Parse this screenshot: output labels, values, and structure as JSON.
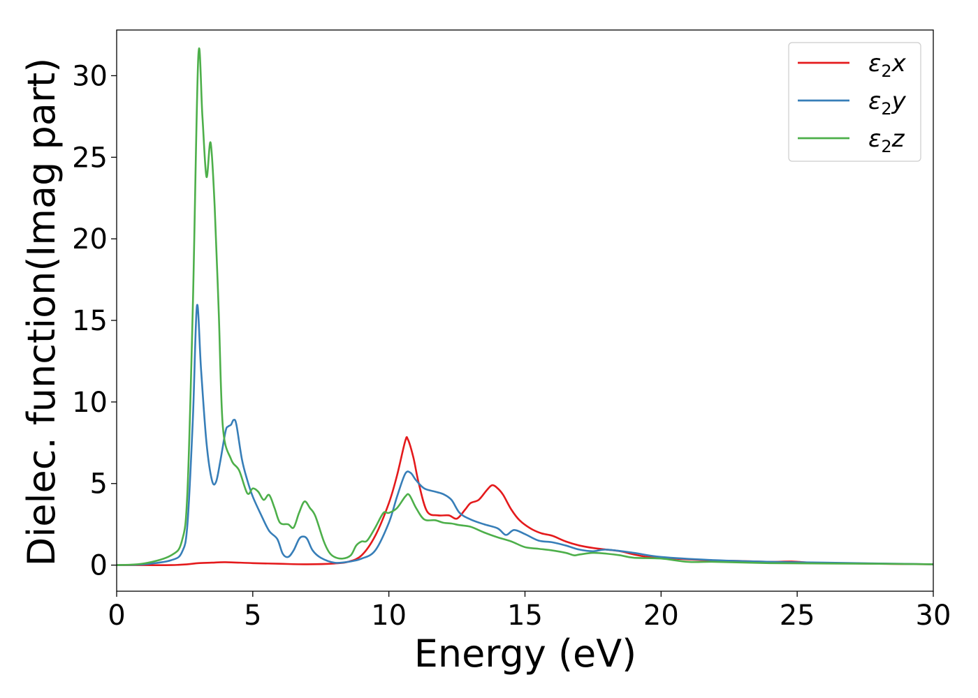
{
  "chart_data": {
    "type": "line",
    "xlabel": "Energy (eV)",
    "ylabel": "Dielec. function(Imag part)",
    "xlim": [
      0,
      30
    ],
    "ylim": [
      -1.6,
      32.8
    ],
    "xticks": [
      0,
      5,
      10,
      15,
      20,
      25,
      30
    ],
    "yticks": [
      0,
      5,
      10,
      15,
      20,
      25,
      30
    ],
    "grid": false,
    "legend_position": "top-right",
    "series": [
      {
        "name": "ε₂x",
        "legend": {
          "base": "ε",
          "sub": "2",
          "axis": "x"
        },
        "color": "#e41a1c",
        "x": [
          0,
          1,
          2,
          2.6,
          3.0,
          3.5,
          4.0,
          5.0,
          6.0,
          7.0,
          8.0,
          8.5,
          9.0,
          9.5,
          10.0,
          10.3,
          10.6,
          10.7,
          10.9,
          11.1,
          11.4,
          11.8,
          12.2,
          12.5,
          12.8,
          13.0,
          13.3,
          13.6,
          13.8,
          14.0,
          14.2,
          14.5,
          14.8,
          15.2,
          15.6,
          16.0,
          16.5,
          17.0,
          17.5,
          18.0,
          18.5,
          19.0,
          19.5,
          20.0,
          21.0,
          22.0,
          23.0,
          24.0,
          24.8,
          25.5,
          26.5,
          28.0,
          30.0
        ],
        "y": [
          0,
          0,
          0,
          0.05,
          0.12,
          0.15,
          0.18,
          0.12,
          0.08,
          0.05,
          0.1,
          0.2,
          0.6,
          1.8,
          3.8,
          5.5,
          7.6,
          7.7,
          6.6,
          5.0,
          3.3,
          3.05,
          3.05,
          2.85,
          3.4,
          3.8,
          4.0,
          4.6,
          4.9,
          4.7,
          4.3,
          3.4,
          2.75,
          2.25,
          1.95,
          1.8,
          1.45,
          1.2,
          1.05,
          0.95,
          0.85,
          0.65,
          0.5,
          0.45,
          0.35,
          0.28,
          0.25,
          0.2,
          0.22,
          0.15,
          0.12,
          0.08,
          0.05
        ]
      },
      {
        "name": "ε₂y",
        "legend": {
          "base": "ε",
          "sub": "2",
          "axis": "y"
        },
        "color": "#377eb8",
        "x": [
          0,
          1,
          2,
          2.4,
          2.6,
          2.8,
          2.95,
          3.1,
          3.3,
          3.5,
          3.65,
          3.8,
          4.0,
          4.1,
          4.2,
          4.3,
          4.4,
          4.6,
          4.8,
          5.0,
          5.3,
          5.6,
          5.9,
          6.1,
          6.3,
          6.5,
          6.7,
          6.85,
          7.0,
          7.2,
          7.5,
          8.0,
          8.5,
          9.0,
          9.5,
          10.0,
          10.3,
          10.6,
          10.8,
          11.0,
          11.3,
          11.7,
          12.0,
          12.3,
          12.6,
          13.0,
          13.5,
          14.0,
          14.3,
          14.6,
          15.0,
          15.5,
          16.0,
          16.5,
          17.0,
          17.5,
          18.0,
          19.0,
          20.0,
          22.0,
          24.0,
          26.0,
          28.0,
          30.0
        ],
        "y": [
          0,
          0.05,
          0.3,
          0.8,
          2.5,
          9.0,
          15.9,
          12.0,
          7.5,
          5.2,
          5.1,
          6.3,
          8.2,
          8.5,
          8.6,
          8.9,
          8.6,
          6.5,
          5.2,
          4.2,
          3.1,
          2.1,
          1.6,
          0.7,
          0.5,
          0.9,
          1.6,
          1.75,
          1.6,
          0.9,
          0.45,
          0.15,
          0.2,
          0.4,
          0.9,
          2.6,
          4.2,
          5.6,
          5.65,
          5.2,
          4.7,
          4.5,
          4.35,
          4.0,
          3.2,
          2.8,
          2.5,
          2.25,
          1.85,
          2.15,
          1.9,
          1.5,
          1.4,
          1.2,
          0.95,
          0.85,
          0.95,
          0.75,
          0.5,
          0.3,
          0.2,
          0.15,
          0.1,
          0.05
        ]
      },
      {
        "name": "ε₂z",
        "legend": {
          "base": "ε",
          "sub": "2",
          "axis": "z"
        },
        "color": "#4daf4a",
        "x": [
          0,
          1,
          2,
          2.4,
          2.6,
          2.8,
          3.0,
          3.15,
          3.3,
          3.45,
          3.6,
          3.75,
          3.9,
          4.2,
          4.5,
          4.8,
          5.0,
          5.2,
          5.4,
          5.6,
          5.8,
          6.0,
          6.3,
          6.5,
          6.7,
          6.9,
          7.1,
          7.3,
          7.6,
          7.8,
          8.0,
          8.3,
          8.6,
          8.8,
          9.0,
          9.2,
          9.5,
          9.8,
          10.0,
          10.3,
          10.6,
          10.75,
          11.0,
          11.3,
          11.7,
          12.0,
          12.3,
          12.6,
          13.0,
          13.5,
          14.0,
          14.5,
          15.0,
          15.5,
          16.0,
          16.5,
          16.8,
          17.0,
          17.5,
          18.0,
          18.5,
          19.0,
          20.0,
          21.0,
          22.0,
          24.0,
          26.0,
          28.0,
          30.0
        ],
        "y": [
          0,
          0.1,
          0.6,
          1.5,
          4.5,
          16.0,
          31.2,
          27.5,
          23.8,
          25.9,
          22.0,
          15.5,
          8.5,
          6.5,
          5.8,
          4.4,
          4.7,
          4.5,
          4.0,
          4.3,
          3.5,
          2.6,
          2.5,
          2.3,
          3.2,
          3.9,
          3.5,
          3.0,
          1.5,
          0.8,
          0.5,
          0.4,
          0.6,
          1.2,
          1.45,
          1.5,
          2.3,
          3.2,
          3.2,
          3.5,
          4.2,
          4.3,
          3.5,
          2.8,
          2.75,
          2.6,
          2.55,
          2.45,
          2.35,
          2.0,
          1.7,
          1.45,
          1.1,
          1.0,
          0.9,
          0.75,
          0.6,
          0.65,
          0.75,
          0.7,
          0.6,
          0.45,
          0.4,
          0.2,
          0.2,
          0.12,
          0.1,
          0.08,
          0.05
        ]
      }
    ]
  }
}
